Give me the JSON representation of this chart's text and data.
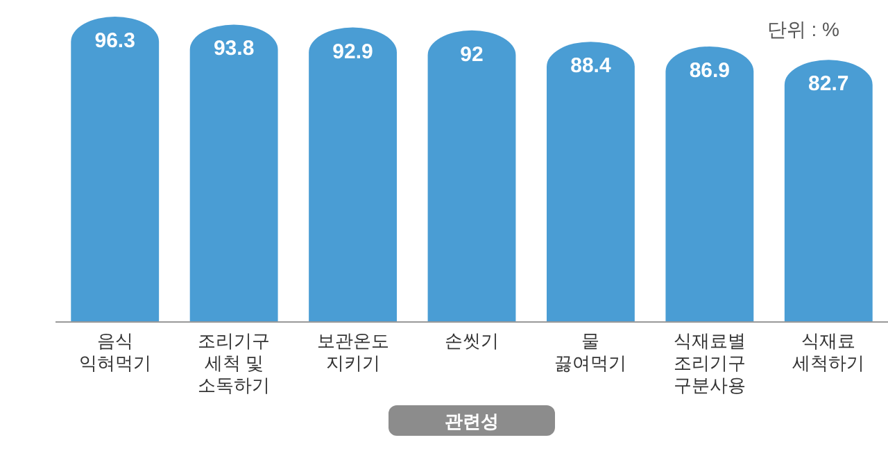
{
  "chart_data": {
    "type": "bar",
    "categories": [
      "음식\n익혀먹기",
      "조리기구\n세척 및\n소독하기",
      "보관온도\n지키기",
      "손씻기",
      "물\n끓여먹기",
      "식재료별\n조리기구\n구분사용",
      "식재료\n세척하기"
    ],
    "values": [
      96.3,
      93.8,
      92.9,
      92,
      88.4,
      86.9,
      82.7
    ],
    "color": "#4a9dd4",
    "data_labels": true,
    "xlabel": "관련성",
    "annotations": [
      "단위 : %"
    ]
  }
}
